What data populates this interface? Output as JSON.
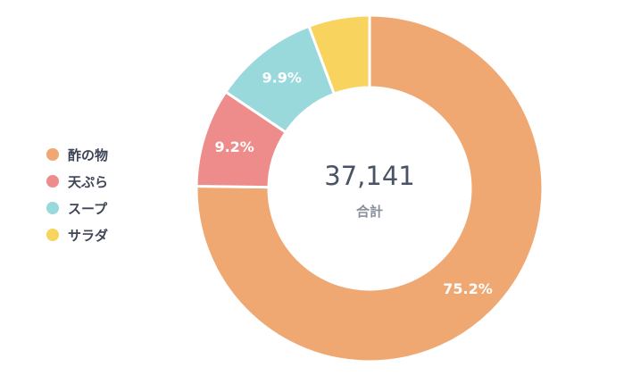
{
  "chart_data": {
    "type": "pie",
    "categories": [
      "酢の物",
      "天ぷら",
      "スープ",
      "サラダ"
    ],
    "values": [
      75.2,
      9.2,
      9.9,
      5.7
    ],
    "value_labels": [
      "75.2%",
      "9.2%",
      "9.9%",
      ""
    ],
    "colors": [
      "#f0a872",
      "#ee8c8c",
      "#99d8db",
      "#f8d35d"
    ],
    "legend_position": "left",
    "center_total": "37,141",
    "center_caption": "合計"
  }
}
